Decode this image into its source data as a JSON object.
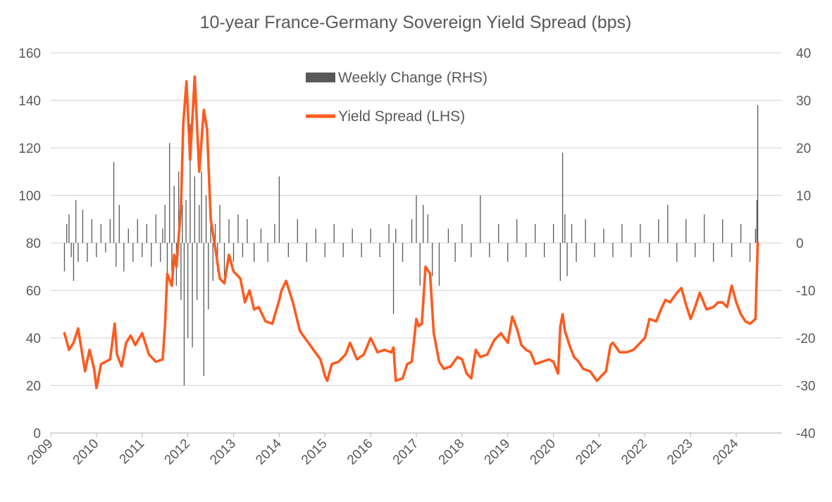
{
  "chart_data": {
    "type": "line",
    "title": "10-year France-Germany Sovereign Yield Spread (bps)",
    "xlabel": "",
    "ylabel": "",
    "x_ticks": [
      "2009",
      "2010",
      "2011",
      "2012",
      "2013",
      "2014",
      "2015",
      "2016",
      "2017",
      "2018",
      "2019",
      "2020",
      "2021",
      "2022",
      "2023",
      "2024"
    ],
    "x_range": [
      2009,
      2025
    ],
    "y_left": {
      "min": 0,
      "max": 160,
      "ticks": [
        0,
        20,
        40,
        60,
        80,
        100,
        120,
        140,
        160
      ]
    },
    "y_right": {
      "min": -40,
      "max": 40,
      "ticks": [
        -40,
        -30,
        -20,
        -10,
        0,
        10,
        20,
        30,
        40
      ]
    },
    "grid": true,
    "legend_placement": "top-center",
    "colors": {
      "spread": "#ff5a1f",
      "change": "#595959",
      "grid": "#d9d9d9",
      "text": "#595959"
    },
    "series": [
      {
        "name": "Yield Spread (LHS)",
        "axis": "left",
        "kind": "line",
        "x": [
          2009.3,
          2009.4,
          2009.5,
          2009.6,
          2009.75,
          2009.85,
          2009.95,
          2010.0,
          2010.1,
          2010.2,
          2010.3,
          2010.4,
          2010.45,
          2010.55,
          2010.65,
          2010.75,
          2010.85,
          2011.0,
          2011.15,
          2011.3,
          2011.45,
          2011.5,
          2011.55,
          2011.65,
          2011.7,
          2011.75,
          2011.85,
          2011.9,
          2011.97,
          2012.05,
          2012.15,
          2012.25,
          2012.35,
          2012.42,
          2012.5,
          2012.6,
          2012.7,
          2012.8,
          2012.9,
          2013.0,
          2013.15,
          2013.25,
          2013.35,
          2013.45,
          2013.55,
          2013.7,
          2013.85,
          2014.0,
          2014.05,
          2014.15,
          2014.3,
          2014.45,
          2014.6,
          2014.75,
          2014.9,
          2015.0,
          2015.05,
          2015.15,
          2015.3,
          2015.45,
          2015.55,
          2015.7,
          2015.85,
          2016.0,
          2016.15,
          2016.3,
          2016.45,
          2016.5,
          2016.55,
          2016.7,
          2016.8,
          2016.9,
          2017.0,
          2017.05,
          2017.12,
          2017.2,
          2017.3,
          2017.38,
          2017.5,
          2017.6,
          2017.75,
          2017.9,
          2018.0,
          2018.1,
          2018.2,
          2018.3,
          2018.4,
          2018.55,
          2018.7,
          2018.85,
          2019.0,
          2019.1,
          2019.2,
          2019.3,
          2019.4,
          2019.5,
          2019.6,
          2019.75,
          2019.9,
          2020.0,
          2020.1,
          2020.15,
          2020.2,
          2020.25,
          2020.35,
          2020.45,
          2020.55,
          2020.65,
          2020.8,
          2020.95,
          2021.05,
          2021.15,
          2021.25,
          2021.3,
          2021.45,
          2021.6,
          2021.75,
          2021.9,
          2022.0,
          2022.1,
          2022.25,
          2022.35,
          2022.45,
          2022.55,
          2022.7,
          2022.8,
          2022.9,
          2023.0,
          2023.1,
          2023.2,
          2023.35,
          2023.5,
          2023.6,
          2023.7,
          2023.8,
          2023.9,
          2024.0,
          2024.1,
          2024.2,
          2024.3,
          2024.42,
          2024.47
        ],
        "values": [
          42,
          35,
          38,
          44,
          26,
          35,
          27,
          19,
          29,
          30,
          31,
          46,
          33,
          28,
          38,
          41,
          37,
          42,
          33,
          30,
          31,
          45,
          67,
          62,
          75,
          70,
          95,
          130,
          148,
          115,
          150,
          110,
          136,
          128,
          90,
          78,
          65,
          63,
          75,
          68,
          65,
          55,
          60,
          52,
          53,
          47,
          46,
          56,
          60,
          64,
          55,
          43,
          39,
          35,
          31,
          24,
          22,
          29,
          30,
          33,
          38,
          31,
          33,
          40,
          34,
          35,
          34,
          36,
          22,
          23,
          29,
          30,
          48,
          45,
          46,
          70,
          67,
          42,
          30,
          27,
          28,
          32,
          31,
          25,
          23,
          35,
          32,
          33,
          39,
          42,
          38,
          49,
          44,
          37,
          35,
          34,
          29,
          30,
          31,
          30,
          25,
          45,
          50,
          43,
          37,
          32,
          30,
          27,
          26,
          22,
          24,
          26,
          37,
          38,
          34,
          34,
          35,
          38,
          40,
          48,
          47,
          52,
          56,
          55,
          59,
          61,
          54,
          48,
          53,
          59,
          52,
          53,
          55,
          55,
          53,
          62,
          55,
          50,
          47,
          46,
          48,
          80
        ],
        "values_count_note": ""
      },
      {
        "name": "Weekly Change (RHS)",
        "axis": "right",
        "kind": "bar",
        "x": [
          2009.3,
          2009.35,
          2009.4,
          2009.45,
          2009.5,
          2009.55,
          2009.6,
          2009.7,
          2009.8,
          2009.9,
          2010.0,
          2010.1,
          2010.2,
          2010.3,
          2010.38,
          2010.43,
          2010.5,
          2010.6,
          2010.7,
          2010.8,
          2010.9,
          2011.0,
          2011.1,
          2011.2,
          2011.3,
          2011.4,
          2011.45,
          2011.5,
          2011.55,
          2011.6,
          2011.65,
          2011.7,
          2011.75,
          2011.8,
          2011.85,
          2011.88,
          2011.92,
          2011.96,
          2012.0,
          2012.05,
          2012.1,
          2012.15,
          2012.2,
          2012.25,
          2012.3,
          2012.35,
          2012.4,
          2012.45,
          2012.5,
          2012.55,
          2012.6,
          2012.65,
          2012.7,
          2012.8,
          2012.9,
          2013.0,
          2013.1,
          2013.2,
          2013.3,
          2013.45,
          2013.6,
          2013.75,
          2013.9,
          2014.0,
          2014.2,
          2014.4,
          2014.6,
          2014.8,
          2015.0,
          2015.2,
          2015.4,
          2015.6,
          2015.8,
          2016.0,
          2016.2,
          2016.4,
          2016.5,
          2016.55,
          2016.7,
          2016.9,
          2017.0,
          2017.08,
          2017.15,
          2017.25,
          2017.35,
          2017.5,
          2017.7,
          2017.85,
          2018.0,
          2018.2,
          2018.4,
          2018.6,
          2018.8,
          2019.0,
          2019.2,
          2019.4,
          2019.6,
          2019.8,
          2020.0,
          2020.15,
          2020.2,
          2020.25,
          2020.3,
          2020.4,
          2020.5,
          2020.7,
          2020.9,
          2021.1,
          2021.3,
          2021.5,
          2021.7,
          2021.9,
          2022.1,
          2022.3,
          2022.5,
          2022.7,
          2022.9,
          2023.1,
          2023.3,
          2023.5,
          2023.7,
          2023.9,
          2024.1,
          2024.3,
          2024.42,
          2024.45,
          2024.47
        ],
        "values": [
          -6,
          4,
          6,
          -3,
          -8,
          9,
          -4,
          7,
          -4,
          5,
          -3,
          4,
          -2,
          5,
          17,
          -5,
          8,
          -6,
          3,
          -4,
          5,
          -3,
          4,
          -5,
          6,
          -4,
          3,
          8,
          -7,
          21,
          -6,
          12,
          -9,
          15,
          -12,
          8,
          -30,
          9,
          -20,
          25,
          -22,
          14,
          -12,
          8,
          15,
          -28,
          10,
          -14,
          6,
          -8,
          4,
          -6,
          8,
          -7,
          5,
          -4,
          6,
          -3,
          5,
          -4,
          3,
          -4,
          4,
          14,
          -3,
          5,
          -4,
          3,
          -3,
          4,
          -3,
          3,
          -3,
          3,
          -3,
          4,
          -15,
          3,
          -4,
          5,
          10,
          -9,
          8,
          6,
          -7,
          -9,
          3,
          -4,
          4,
          -3,
          10,
          -3,
          4,
          -4,
          5,
          -3,
          4,
          -3,
          4,
          -8,
          19,
          6,
          -7,
          4,
          -4,
          5,
          -3,
          3,
          -3,
          4,
          -3,
          4,
          -3,
          5,
          8,
          -4,
          5,
          -3,
          6,
          -4,
          5,
          -3,
          4,
          -4,
          3,
          9,
          29
        ]
      }
    ]
  }
}
